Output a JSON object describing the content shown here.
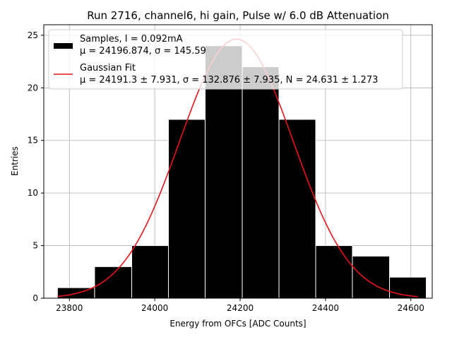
{
  "chart_data": {
    "type": "bar",
    "title": "Run 2716, channel6, hi gain, Pulse w/ 6.0 dB Attenuation",
    "xlabel": "Energy from OFCs [ADC Counts]",
    "ylabel": "Entries",
    "xlim": [
      23740,
      24650
    ],
    "ylim": [
      0,
      26
    ],
    "xticks": [
      23800,
      24000,
      24200,
      24400,
      24600
    ],
    "xtick_labels": [
      "23800",
      "24000",
      "24200",
      "24400",
      "24600"
    ],
    "yticks": [
      0,
      5,
      10,
      15,
      20,
      25
    ],
    "ytick_labels": [
      "0",
      "5",
      "10",
      "15",
      "20",
      "25"
    ],
    "grid": true,
    "legend_position": "top-left",
    "histogram": {
      "name": "Samples, I = 0.092mA",
      "color": "#000000",
      "bin_edges": [
        23772,
        23859,
        23946,
        24032,
        24118,
        24205,
        24291,
        24377,
        24463,
        24550,
        24636
      ],
      "counts": [
        1,
        3,
        5,
        17,
        24,
        22,
        17,
        5,
        4,
        2
      ],
      "stats_label": "μ = 24196.874, σ = 145.59"
    },
    "fit": {
      "name": "Gaussian Fit",
      "color": "#e8141a",
      "mu": 24191.3,
      "sigma": 132.876,
      "N": 24.631,
      "x_range": [
        23772,
        24616
      ],
      "stats_label": "μ = 24191.3 ± 7.931, σ = 132.876 ± 7.935, N = 24.631 ± 1.273"
    }
  }
}
